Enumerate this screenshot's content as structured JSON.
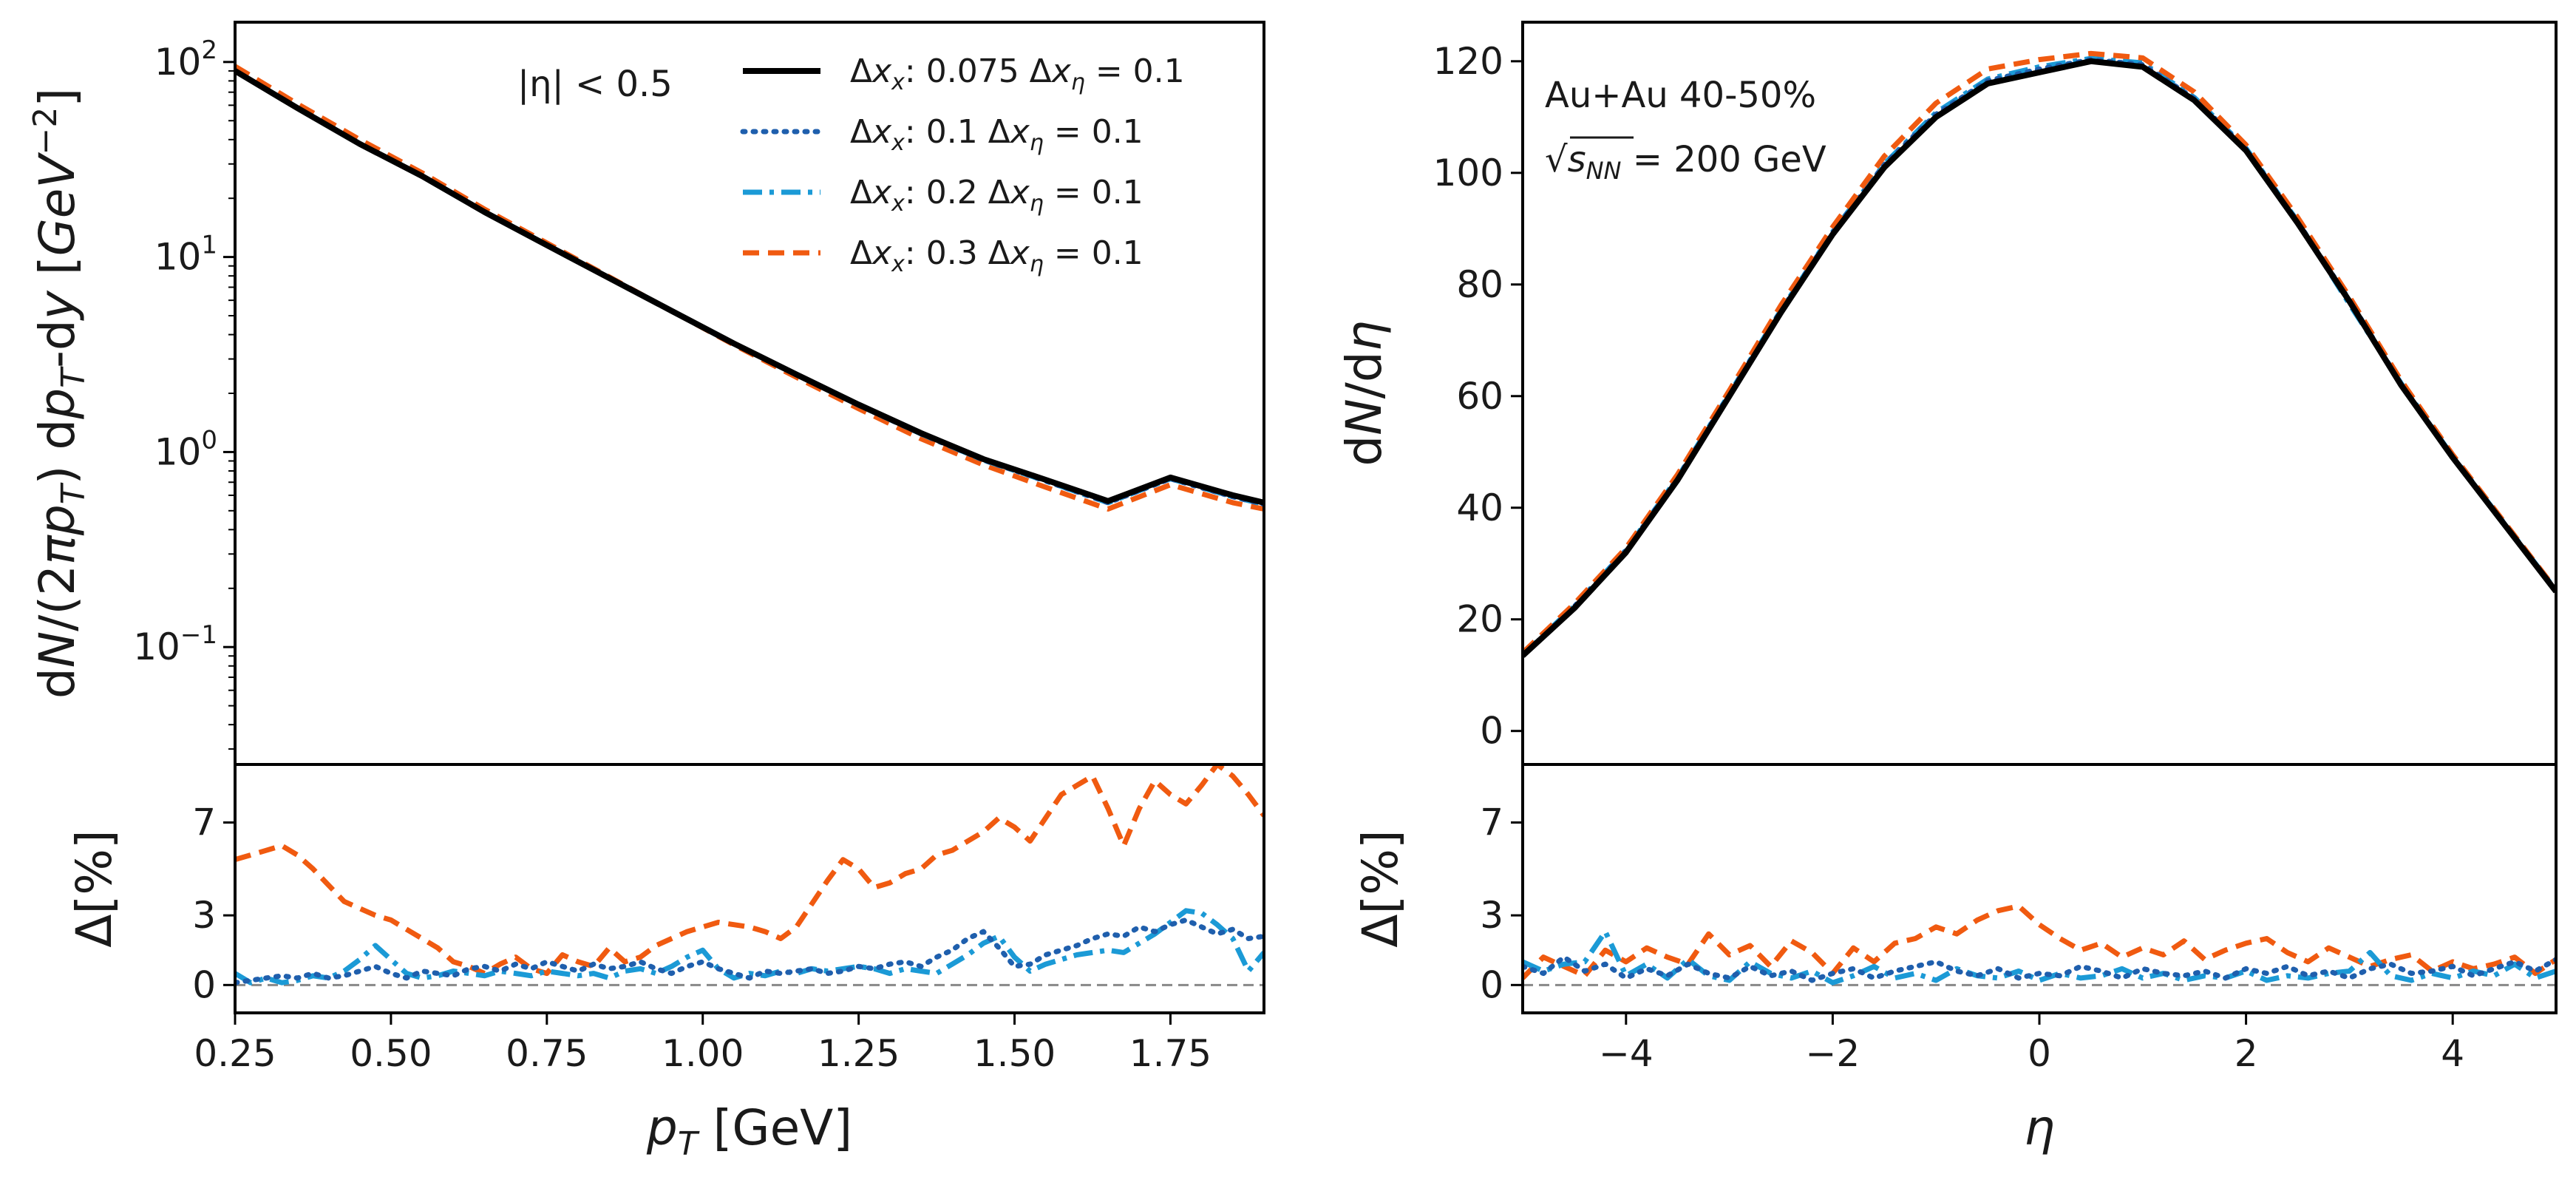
{
  "colors": {
    "black": "#000000",
    "dotted_blue": "#1f5fad",
    "dashdot_cyan": "#1b9ad6",
    "dashed_orange": "#f05a10",
    "zero_line": "#888888"
  },
  "chart_data": [
    {
      "id": "spectrum",
      "type": "line",
      "yscale": "log",
      "xlabel": "",
      "ylabel": "dN/(2πp_T) dp_T dy [GeV⁻²]",
      "xlim": [
        0.25,
        1.9
      ],
      "ylim": [
        0.025,
        160
      ],
      "y_ticks": [
        {
          "v": 100,
          "base": "10",
          "exp": "2"
        },
        {
          "v": 10,
          "base": "10",
          "exp": "1"
        },
        {
          "v": 1,
          "base": "10",
          "exp": "0"
        },
        {
          "v": 0.1,
          "base": "10",
          "exp": "−1"
        }
      ],
      "annotation": "|η| < 0.5",
      "legend": {
        "position": "top-right",
        "entries": [
          "Δx_x: 0.075 Δx_η = 0.1",
          "Δx_x: 0.1 Δx_η = 0.1",
          "Δx_x: 0.2 Δx_η = 0.1",
          "Δx_x: 0.3 Δx_η = 0.1"
        ]
      },
      "x": [
        0.25,
        0.35,
        0.45,
        0.55,
        0.65,
        0.75,
        0.85,
        0.95,
        1.05,
        1.15,
        1.25,
        1.35,
        1.45,
        1.55,
        1.65,
        1.75,
        1.85,
        1.9
      ],
      "series": [
        {
          "name": "Δx_x: 0.075 Δx_η = 0.1",
          "values": [
            90,
            58,
            38,
            26,
            17,
            11.5,
            7.8,
            5.3,
            3.6,
            2.5,
            1.75,
            1.25,
            0.92,
            0.72,
            0.56,
            0.74,
            0.6,
            0.55
          ]
        },
        {
          "name": "Δx_x: 0.1 Δx_η = 0.1",
          "values": [
            90,
            58,
            38,
            26,
            17,
            11.5,
            7.8,
            5.3,
            3.6,
            2.5,
            1.74,
            1.24,
            0.91,
            0.71,
            0.55,
            0.73,
            0.59,
            0.54
          ]
        },
        {
          "name": "Δx_x: 0.2 Δx_η = 0.1",
          "values": [
            90,
            58,
            38,
            26,
            17,
            11.5,
            7.8,
            5.3,
            3.6,
            2.5,
            1.74,
            1.24,
            0.91,
            0.71,
            0.55,
            0.73,
            0.59,
            0.54
          ]
        },
        {
          "name": "Δx_x: 0.3 Δx_η = 0.1",
          "values": [
            95,
            61,
            40,
            27,
            17.6,
            11.8,
            7.9,
            5.3,
            3.55,
            2.42,
            1.67,
            1.17,
            0.86,
            0.66,
            0.51,
            0.68,
            0.55,
            0.51
          ]
        }
      ]
    },
    {
      "id": "spectrum_ratio",
      "type": "line",
      "xlabel": "p_T [GeV]",
      "ylabel": "Δ[%]",
      "xlim": [
        0.25,
        1.9
      ],
      "ylim": [
        -1.2,
        9.5
      ],
      "x_ticks": [
        "0.25",
        "0.50",
        "0.75",
        "1.00",
        "1.25",
        "1.50",
        "1.75"
      ],
      "y_ticks": [
        "0",
        "3",
        "7"
      ],
      "x": [
        0.25,
        0.275,
        0.3,
        0.325,
        0.35,
        0.375,
        0.4,
        0.425,
        0.45,
        0.475,
        0.5,
        0.525,
        0.55,
        0.575,
        0.6,
        0.625,
        0.65,
        0.675,
        0.7,
        0.725,
        0.75,
        0.775,
        0.8,
        0.825,
        0.85,
        0.875,
        0.9,
        0.925,
        0.95,
        0.975,
        1.0,
        1.025,
        1.05,
        1.075,
        1.1,
        1.125,
        1.15,
        1.175,
        1.2,
        1.225,
        1.25,
        1.275,
        1.3,
        1.325,
        1.35,
        1.375,
        1.4,
        1.425,
        1.45,
        1.475,
        1.5,
        1.525,
        1.55,
        1.575,
        1.6,
        1.625,
        1.65,
        1.675,
        1.7,
        1.725,
        1.75,
        1.775,
        1.8,
        1.825,
        1.85,
        1.875,
        1.9
      ],
      "series": [
        {
          "name": "Δx_x: 0.1 Δx_η = 0.1",
          "values": [
            0.1,
            0.2,
            0.3,
            0.4,
            0.3,
            0.5,
            0.3,
            0.4,
            0.6,
            0.8,
            0.5,
            0.3,
            0.6,
            0.5,
            0.4,
            0.7,
            0.8,
            0.6,
            0.9,
            0.7,
            1.0,
            0.8,
            0.6,
            0.9,
            0.7,
            0.8,
            1.0,
            0.7,
            0.5,
            0.8,
            1.0,
            0.7,
            0.5,
            0.3,
            0.6,
            0.5,
            0.6,
            0.7,
            0.5,
            0.6,
            0.8,
            0.7,
            0.9,
            1.0,
            0.8,
            1.2,
            1.5,
            2.0,
            2.3,
            1.6,
            0.8,
            0.9,
            1.3,
            1.5,
            1.7,
            2.0,
            2.2,
            2.1,
            2.5,
            2.3,
            2.6,
            2.8,
            2.5,
            2.2,
            2.4,
            2.0,
            2.1
          ]
        },
        {
          "name": "Δx_x: 0.2 Δx_η = 0.1",
          "values": [
            0.5,
            0.1,
            0.3,
            0.1,
            0.2,
            0.4,
            0.3,
            0.6,
            1.1,
            1.7,
            1.1,
            0.5,
            0.3,
            0.4,
            0.6,
            0.5,
            0.4,
            0.6,
            0.5,
            0.4,
            0.6,
            0.5,
            0.4,
            0.5,
            0.3,
            0.6,
            0.7,
            0.5,
            0.8,
            1.2,
            1.5,
            0.7,
            0.3,
            0.5,
            0.4,
            0.6,
            0.5,
            0.7,
            0.6,
            0.7,
            0.8,
            0.7,
            0.5,
            0.7,
            0.6,
            0.5,
            0.9,
            1.3,
            1.8,
            2.1,
            1.2,
            0.6,
            0.9,
            1.1,
            1.3,
            1.4,
            1.5,
            1.4,
            1.8,
            2.2,
            2.7,
            3.2,
            3.1,
            2.6,
            2.0,
            0.6,
            1.4
          ]
        },
        {
          "name": "Δx_x: 0.3 Δx_η = 0.1",
          "values": [
            5.4,
            5.6,
            5.8,
            6.0,
            5.6,
            5.0,
            4.3,
            3.6,
            3.3,
            3.0,
            2.8,
            2.4,
            2.0,
            1.6,
            1.0,
            0.8,
            0.5,
            0.9,
            1.2,
            0.7,
            0.5,
            1.3,
            1.0,
            0.8,
            1.6,
            1.0,
            1.2,
            1.7,
            2.0,
            2.3,
            2.5,
            2.7,
            2.6,
            2.5,
            2.3,
            2.0,
            2.5,
            3.5,
            4.5,
            5.4,
            5.0,
            4.2,
            4.4,
            4.8,
            5.0,
            5.6,
            5.8,
            6.2,
            6.6,
            7.2,
            6.8,
            6.2,
            7.2,
            8.2,
            8.6,
            9.0,
            7.6,
            6.0,
            7.6,
            8.8,
            8.2,
            7.8,
            8.6,
            9.5,
            9.0,
            8.2,
            7.3
          ]
        }
      ]
    },
    {
      "id": "dndeta",
      "type": "line",
      "xlabel": "",
      "ylabel": "dN/dη",
      "xlim": [
        -5,
        5
      ],
      "ylim": [
        -6,
        127
      ],
      "y_ticks": [
        "0",
        "20",
        "40",
        "60",
        "80",
        "100",
        "120"
      ],
      "annotation_lines": [
        "Au+Au 40-50%",
        "√s_NN = 200 GeV"
      ],
      "x": [
        -5.0,
        -4.5,
        -4.0,
        -3.5,
        -3.0,
        -2.5,
        -2.0,
        -1.5,
        -1.0,
        -0.5,
        0.0,
        0.5,
        1.0,
        1.5,
        2.0,
        2.5,
        3.0,
        3.5,
        4.0,
        4.5,
        5.0
      ],
      "series": [
        {
          "name": "Δx_x: 0.075 Δx_η = 0.1",
          "values": [
            13.5,
            22,
            32,
            45,
            60,
            75,
            89,
            101,
            110,
            116,
            118,
            120,
            119,
            113,
            104,
            91,
            77,
            62,
            49,
            37,
            25
          ]
        },
        {
          "name": "Δx_x: 0.1 Δx_η = 0.1",
          "values": [
            13.5,
            22.3,
            32.3,
            45.3,
            60.3,
            75.3,
            89.3,
            101.5,
            110.5,
            116.5,
            118.6,
            120.3,
            119.4,
            113.3,
            104.3,
            91.2,
            77.2,
            62.2,
            49.1,
            37.1,
            25.1
          ]
        },
        {
          "name": "Δx_x: 0.2 Δx_η = 0.1",
          "values": [
            13.6,
            22.4,
            32.4,
            45.4,
            60.4,
            75.4,
            89.4,
            101.6,
            110.8,
            116.8,
            119,
            120.5,
            119.7,
            113.5,
            104.4,
            91.3,
            76.5,
            62.3,
            49.2,
            37.2,
            25.2
          ]
        },
        {
          "name": "Δx_x: 0.3 Δx_η = 0.1",
          "values": [
            14,
            22.8,
            32.8,
            46,
            61,
            76.3,
            90.3,
            103,
            112.5,
            118.6,
            120.3,
            121.4,
            120.6,
            114.5,
            105,
            92,
            77.8,
            62.8,
            49.5,
            37.4,
            25.3
          ]
        }
      ]
    },
    {
      "id": "dndeta_ratio",
      "type": "line",
      "xlabel": "η",
      "ylabel": "Δ[%]",
      "xlim": [
        -5,
        5
      ],
      "ylim": [
        -1.2,
        9.5
      ],
      "x_ticks": [
        "−4",
        "−2",
        "0",
        "2",
        "4"
      ],
      "y_ticks": [
        "0",
        "3",
        "7"
      ],
      "x": [
        -5.0,
        -4.8,
        -4.6,
        -4.4,
        -4.2,
        -4.0,
        -3.8,
        -3.6,
        -3.4,
        -3.2,
        -3.0,
        -2.8,
        -2.6,
        -2.4,
        -2.2,
        -2.0,
        -1.8,
        -1.6,
        -1.4,
        -1.2,
        -1.0,
        -0.8,
        -0.6,
        -0.4,
        -0.2,
        0.0,
        0.2,
        0.4,
        0.6,
        0.8,
        1.0,
        1.2,
        1.4,
        1.6,
        1.8,
        2.0,
        2.2,
        2.4,
        2.6,
        2.8,
        3.0,
        3.2,
        3.4,
        3.6,
        3.8,
        4.0,
        4.2,
        4.4,
        4.6,
        4.8,
        5.0
      ],
      "series": [
        {
          "name": "Δx_x: 0.1 Δx_η = 0.1",
          "values": [
            0.8,
            0.5,
            1.2,
            0.6,
            0.9,
            0.3,
            0.7,
            0.4,
            0.9,
            0.5,
            0.3,
            0.8,
            0.4,
            0.6,
            0.2,
            0.5,
            0.7,
            0.3,
            0.6,
            0.8,
            1.0,
            0.6,
            0.4,
            0.7,
            0.3,
            0.5,
            0.4,
            0.8,
            0.6,
            0.3,
            0.7,
            0.5,
            0.4,
            0.6,
            0.3,
            0.7,
            0.5,
            0.8,
            0.4,
            0.6,
            0.3,
            0.7,
            0.9,
            0.5,
            0.6,
            0.8,
            0.4,
            0.7,
            1.0,
            0.6,
            1.1
          ]
        },
        {
          "name": "Δx_x: 0.2 Δx_η = 0.1",
          "values": [
            1.0,
            0.6,
            0.9,
            1.0,
            2.3,
            0.4,
            0.9,
            0.3,
            1.1,
            0.4,
            0.2,
            1.0,
            0.5,
            0.3,
            0.6,
            0.1,
            0.4,
            0.8,
            0.3,
            0.5,
            0.2,
            0.7,
            0.4,
            0.3,
            0.6,
            0.2,
            0.5,
            0.3,
            0.4,
            0.7,
            0.3,
            0.5,
            0.2,
            0.4,
            0.3,
            0.6,
            0.2,
            0.4,
            0.3,
            0.5,
            0.6,
            1.4,
            0.4,
            0.2,
            0.5,
            0.3,
            0.6,
            0.4,
            0.9,
            0.3,
            0.6
          ]
        },
        {
          "name": "Δx_x: 0.3 Δx_η = 0.1",
          "values": [
            0.3,
            1.2,
            0.8,
            0.4,
            1.5,
            1.0,
            1.6,
            1.2,
            0.9,
            2.2,
            1.3,
            1.7,
            0.8,
            1.9,
            1.4,
            0.5,
            1.6,
            1.0,
            1.8,
            2.0,
            2.5,
            2.2,
            2.8,
            3.2,
            3.4,
            2.6,
            2.0,
            1.5,
            1.8,
            1.2,
            1.6,
            1.3,
            1.9,
            1.1,
            1.5,
            1.8,
            2.0,
            1.4,
            1.0,
            1.6,
            1.2,
            0.8,
            1.1,
            1.3,
            0.6,
            1.0,
            0.7,
            0.9,
            1.2,
            0.5,
            1.1
          ]
        }
      ]
    }
  ]
}
